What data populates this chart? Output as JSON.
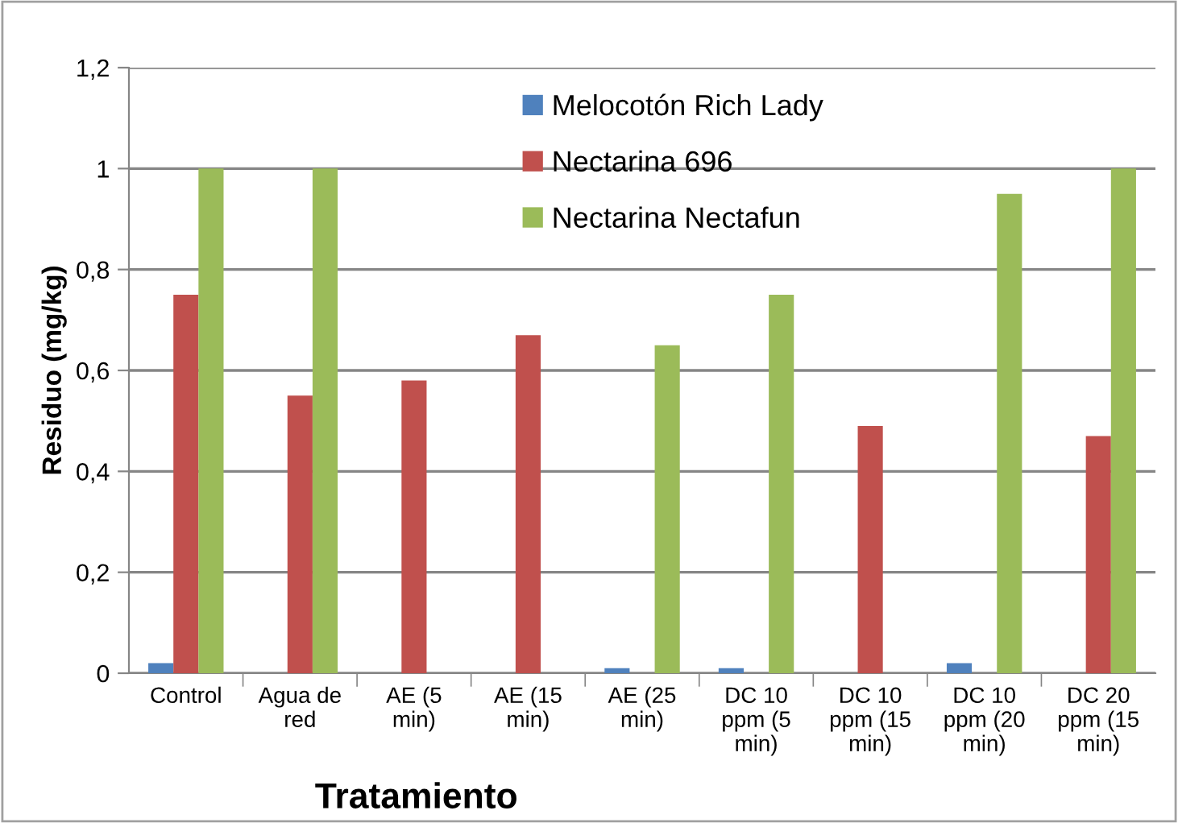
{
  "chart_data": {
    "type": "bar",
    "xlabel": "Tratamiento",
    "ylabel": "Residuo (mg/kg)",
    "categories": [
      "Control",
      "Agua de red",
      "AE (5 min)",
      "AE (15 min)",
      "AE (25 min)",
      "DC 10 ppm (5 min)",
      "DC 10 ppm (15 min)",
      "DC 10 ppm (20 min)",
      "DC 20 ppm (15 min)"
    ],
    "series": [
      {
        "name": "Melocotón Rich Lady",
        "color": "#4f81bd",
        "values": [
          0.02,
          0,
          0,
          0,
          0.01,
          0.01,
          0,
          0.02,
          0
        ]
      },
      {
        "name": "Nectarina 696",
        "color": "#c0504d",
        "values": [
          0.75,
          0.55,
          0.58,
          0.67,
          0,
          0,
          0.49,
          0,
          0.47
        ]
      },
      {
        "name": "Nectarina Nectafun",
        "color": "#9bbb59",
        "values": [
          1,
          1,
          0,
          0,
          0.65,
          0.75,
          0,
          0.95,
          1
        ]
      }
    ],
    "ylim": [
      0,
      1.2
    ],
    "yticks": [
      {
        "value": 0,
        "label": "0"
      },
      {
        "value": 0.2,
        "label": "0,2"
      },
      {
        "value": 0.4,
        "label": "0,4"
      },
      {
        "value": 0.6,
        "label": "0,6"
      },
      {
        "value": 0.8,
        "label": "0,8"
      },
      {
        "value": 1,
        "label": "1"
      },
      {
        "value": 1.2,
        "label": "1,2"
      }
    ],
    "grid": "y",
    "legend": "top"
  }
}
